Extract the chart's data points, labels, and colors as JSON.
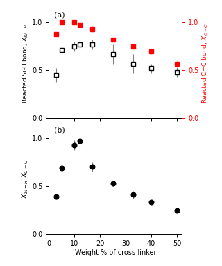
{
  "panel_a": {
    "open_squares_x": [
      3,
      5,
      10,
      12,
      17,
      25,
      33,
      40,
      50
    ],
    "open_squares_y": [
      0.45,
      0.71,
      0.75,
      0.77,
      0.77,
      0.67,
      0.57,
      0.52,
      0.48
    ],
    "open_squares_yerr": [
      0.07,
      0.04,
      0.05,
      0.05,
      0.05,
      0.1,
      0.1,
      0.05,
      0.05
    ],
    "filled_squares_x": [
      3,
      5,
      10,
      12,
      17,
      25,
      33,
      40,
      50
    ],
    "filled_squares_y": [
      0.88,
      1.0,
      1.0,
      0.97,
      0.93,
      0.82,
      0.75,
      0.7,
      0.57
    ],
    "filled_squares_yerr": [
      0.02,
      0.02,
      0.02,
      0.03,
      0.03,
      0.03,
      0.03,
      0.03,
      0.03
    ],
    "ylabel_left": "Reacted Si-H bond, $X_{Si-H}$",
    "ylabel_right": "Reacted C=C bond, $X_{C=C}$",
    "xlim": [
      0,
      52
    ],
    "ylim": [
      0.0,
      1.15
    ],
    "yticks": [
      0.0,
      0.5,
      1.0
    ],
    "label": "(a)"
  },
  "panel_b": {
    "circles_x": [
      3,
      5,
      10,
      12,
      17,
      25,
      33,
      40,
      50
    ],
    "circles_y": [
      0.39,
      0.69,
      0.93,
      0.97,
      0.7,
      0.53,
      0.41,
      0.33,
      0.25
    ],
    "circles_yerr": [
      0.03,
      0.04,
      0.05,
      0.04,
      0.05,
      0.03,
      0.04,
      0.02,
      0.02
    ],
    "ylabel": "$X_{Si-H}$ $X_{C=C}$",
    "xlabel": "Weight % of cross-linker",
    "xlim": [
      0,
      52
    ],
    "ylim": [
      0.0,
      1.15
    ],
    "yticks": [
      0.0,
      0.5,
      1.0
    ],
    "label": "(b)"
  },
  "tick_positions": [
    0,
    10,
    20,
    30,
    40,
    50
  ],
  "bg_color": "white"
}
